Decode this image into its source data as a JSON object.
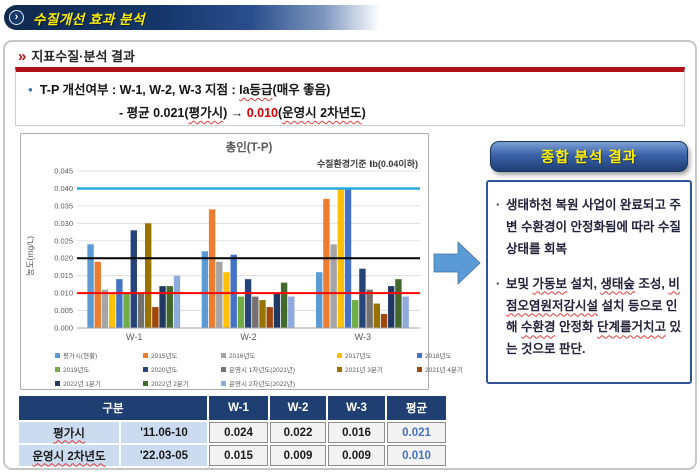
{
  "page": {
    "title": "수질개선 효과 분석",
    "chevron": "›"
  },
  "section": {
    "chevron": "»",
    "heading": "지표수질·분석 결과"
  },
  "indicator": {
    "bullet": "●",
    "line1_segments": [
      {
        "t": "T-P 개선여부 :  W-1, W-2, W-3 지점 : "
      },
      {
        "t": "Ia등급",
        "u": true
      },
      {
        "t": "(매우 좋음)"
      }
    ],
    "line2_segments": [
      {
        "t": "- 평균 0.021("
      },
      {
        "t": "평가시",
        "u": true
      },
      {
        "t": ") → "
      },
      {
        "t": "0.010",
        "c": "red"
      },
      {
        "t": "("
      },
      {
        "t": "운영시 2차년도",
        "u": true
      },
      {
        "t": ")"
      }
    ]
  },
  "chart_data": {
    "type": "bar",
    "title": "총인(T-P)",
    "ylabel": "농도(mg/L)",
    "annotation": "수질환경기준  Ⅰb(0.04이하)",
    "categories": [
      "W-1",
      "W-2",
      "W-3"
    ],
    "ylim": [
      0,
      0.045
    ],
    "ytick_step": 0.005,
    "grid": true,
    "legend_position": "bottom",
    "reference_lines": [
      {
        "value": 0.04,
        "color": "#29ABE2",
        "width": 2.5
      },
      {
        "value": 0.02,
        "color": "#000000",
        "width": 2
      },
      {
        "value": 0.01,
        "color": "#FF0000",
        "width": 2
      }
    ],
    "series": [
      {
        "name": "평가시(현황)",
        "color": "#5B9BD5",
        "values": [
          0.024,
          0.022,
          0.016
        ]
      },
      {
        "name": "2015년도",
        "color": "#ED7D31",
        "values": [
          0.019,
          0.034,
          0.037
        ]
      },
      {
        "name": "2016년도",
        "color": "#A5A5A5",
        "values": [
          0.011,
          0.019,
          0.024
        ]
      },
      {
        "name": "2017년도",
        "color": "#FFC000",
        "values": [
          0.01,
          0.016,
          0.04
        ]
      },
      {
        "name": "2018년도",
        "color": "#4472C4",
        "values": [
          0.014,
          0.021,
          0.04
        ]
      },
      {
        "name": "2019년도",
        "color": "#70AD47",
        "values": [
          0.01,
          0.009,
          0.008
        ]
      },
      {
        "name": "2020년도",
        "color": "#264478",
        "values": [
          0.028,
          0.014,
          0.017
        ]
      },
      {
        "name": "운영시 1차년도(2021년)",
        "color": "#767171",
        "values": [
          0.01,
          0.009,
          0.011
        ]
      },
      {
        "name": "2021년 3분기",
        "color": "#997300",
        "values": [
          0.03,
          0.008,
          0.007
        ]
      },
      {
        "name": "2021년 4분기",
        "color": "#9E480E",
        "values": [
          0.006,
          0.006,
          0.004
        ]
      },
      {
        "name": "2022년 1분기",
        "color": "#1F3864",
        "values": [
          0.012,
          0.01,
          0.012
        ]
      },
      {
        "name": "2022년 2분기",
        "color": "#43682B",
        "values": [
          0.012,
          0.013,
          0.014
        ]
      },
      {
        "name": "운영시 2차년도(2022년)",
        "color": "#8FAADC",
        "values": [
          0.015,
          0.009,
          0.009
        ]
      }
    ]
  },
  "analysis": {
    "title": "종합 분석 결과",
    "bullet": "·",
    "bullet1_segments": [
      {
        "t": "생태하천 복원 사업이 완료되고 주변 수환경이 안정화됨에 따라 수질 상태를 회복"
      }
    ],
    "bullet2_segments": [
      {
        "t": "보및 "
      },
      {
        "t": "가동보",
        "u": true
      },
      {
        "t": " 설치,  "
      },
      {
        "t": "생태숲",
        "u": true
      },
      {
        "t": " 조성, "
      },
      {
        "t": "비점오염원저감시설",
        "u": true
      },
      {
        "t": " 설치 등으로 인해 "
      },
      {
        "t": "수환경",
        "u": true
      },
      {
        "t": " 안정화 "
      },
      {
        "t": "단계를거치고",
        "u": true
      },
      {
        "t": " 있는 것으로 판단."
      }
    ]
  },
  "table": {
    "headers": [
      "구분",
      "W-1",
      "W-2",
      "W-3",
      "평균"
    ],
    "rows": [
      {
        "label": "평가시",
        "period": "'11.06-10",
        "values": [
          "0.024",
          "0.022",
          "0.016"
        ],
        "avg": "0.021"
      },
      {
        "label": "운영시 2차년도",
        "period": "'22.03-05",
        "values": [
          "0.015",
          "0.009",
          "0.009"
        ],
        "avg": "0.010"
      }
    ]
  }
}
